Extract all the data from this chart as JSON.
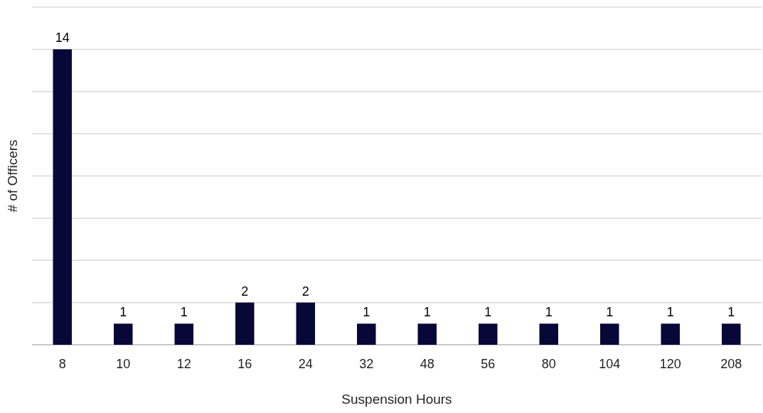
{
  "chart_data": {
    "type": "bar",
    "xlabel": "Suspension Hours",
    "ylabel": "# of Officers",
    "categories": [
      "8",
      "10",
      "12",
      "16",
      "24",
      "32",
      "48",
      "56",
      "80",
      "104",
      "120",
      "208"
    ],
    "values": [
      14,
      1,
      1,
      2,
      2,
      1,
      1,
      1,
      1,
      1,
      1,
      1
    ],
    "color": "#070738",
    "ylim": [
      0,
      16
    ],
    "yticks": [
      {
        "value": 0,
        "label": null
      },
      {
        "value": 2,
        "label": null
      },
      {
        "value": 4,
        "label": null
      },
      {
        "value": 6,
        "label": null
      },
      {
        "value": 8,
        "label": null
      },
      {
        "value": 10,
        "label": null
      },
      {
        "value": 12,
        "label": null
      },
      {
        "value": 14,
        "label": null
      },
      {
        "value": 16,
        "label": null
      }
    ],
    "grid": "y",
    "tick_labels": "x",
    "data_labels": true
  }
}
